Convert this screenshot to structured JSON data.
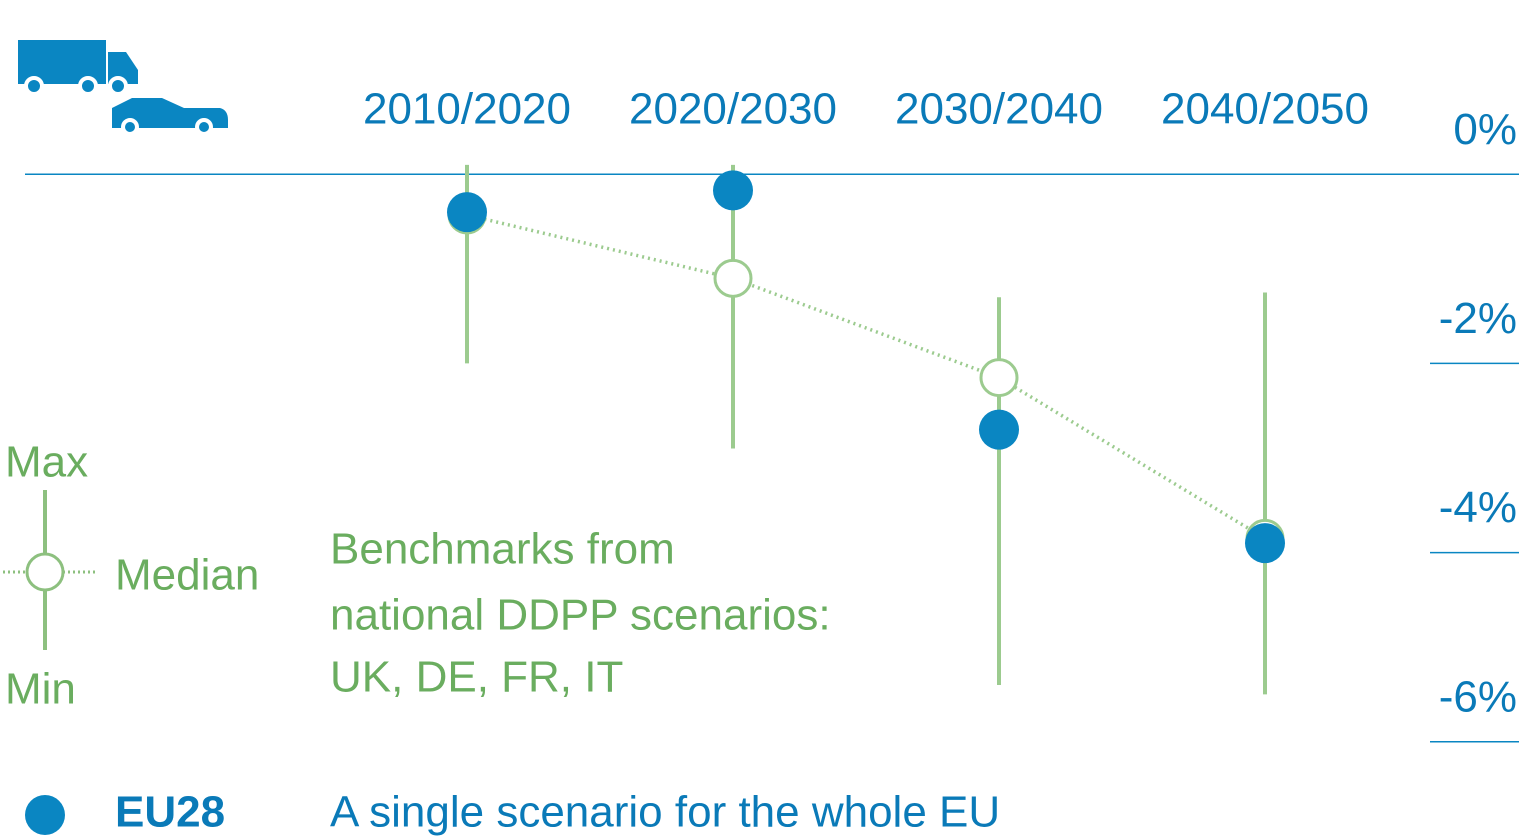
{
  "chart_data": {
    "type": "range",
    "categories": [
      "2010/2020",
      "2020/2030",
      "2030/2040",
      "2040/2050"
    ],
    "series": [
      {
        "name": "Max",
        "color": "#9ccb8f",
        "values": [
          0.1,
          0.1,
          -1.3,
          -1.25
        ]
      },
      {
        "name": "Min",
        "color": "#9ccb8f",
        "values": [
          -2.0,
          -2.9,
          -5.4,
          -5.5
        ]
      },
      {
        "name": "Median",
        "color": "#9ccb8f",
        "values": [
          -0.43,
          -1.1,
          -2.15,
          -3.85
        ]
      },
      {
        "name": "EU28",
        "color": "#0a86c2",
        "values": [
          -0.4,
          -0.17,
          -2.7,
          -3.9
        ]
      }
    ],
    "ylim": [
      -6.5,
      0.5
    ],
    "yticks": [
      {
        "value": 0,
        "label": "0%"
      },
      {
        "value": -2,
        "label": "-2%"
      },
      {
        "value": -4,
        "label": "-4%"
      },
      {
        "value": -6,
        "label": "-6%"
      }
    ],
    "benchmark_note": [
      "Benchmarks from",
      "national DDPP scenarios:",
      "UK, DE, FR, IT"
    ],
    "eu28_note": "A single scenario for the whole EU"
  }
}
